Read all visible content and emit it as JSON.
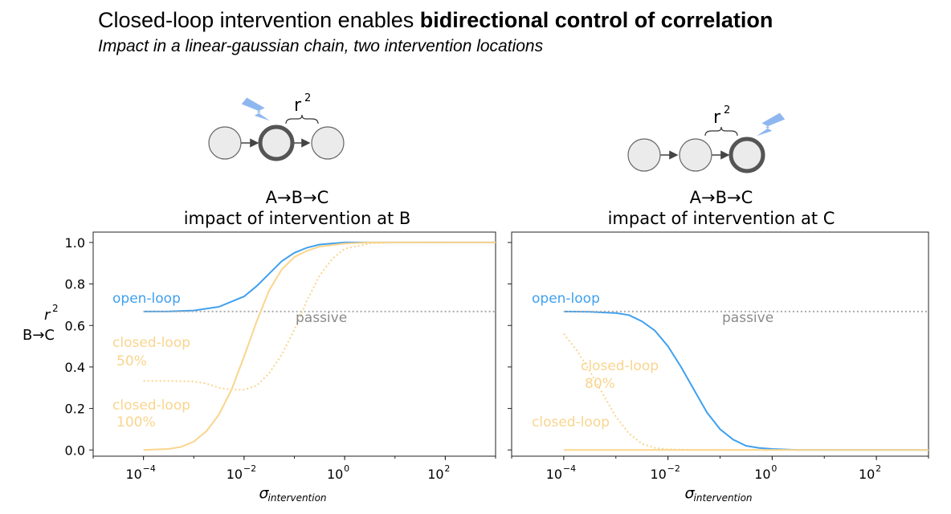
{
  "header": {
    "title_prefix": "Closed-loop intervention enables ",
    "title_bold": "bidirectional control of correlation",
    "subtitle": "Impact in a linear-gaussian chain, two intervention locations"
  },
  "colors": {
    "open_loop": "#3fa0ef",
    "closed_loop": "#f9d58d",
    "passive": "#aaaaaa",
    "node_fill": "#ebebeb",
    "node_stroke": "#555555",
    "lightning": "#8fb7ef"
  },
  "ylabel": {
    "r_label": "r",
    "r_exp": "2",
    "pair": "B→C"
  },
  "shared_y_ticks": [
    "0.0",
    "0.2",
    "0.4",
    "0.6",
    "0.8",
    "1.0"
  ],
  "shared_x_ticks": [
    {
      "base": "10",
      "exp": "−4"
    },
    {
      "base": "10",
      "exp": "−2"
    },
    {
      "base": "10",
      "exp": "0"
    },
    {
      "base": "10",
      "exp": "2"
    }
  ],
  "xlabel": {
    "sym": "σ",
    "sub": "intervention"
  },
  "panels": [
    {
      "diagram": {
        "r_label": "r",
        "r_exp": "2",
        "intervened_node": "B"
      },
      "title_line1": "A→B→C",
      "title_line2": "impact of intervention at B",
      "annotations": {
        "open": "open-loop",
        "passive": "passive",
        "closed_a_1": "closed-loop",
        "closed_a_2": "50%",
        "closed_b_1": "closed-loop",
        "closed_b_2": "100%"
      }
    },
    {
      "diagram": {
        "r_label": "r",
        "r_exp": "2",
        "intervened_node": "C"
      },
      "title_line1": "A→B→C",
      "title_line2": "impact of intervention at C",
      "annotations": {
        "open": "open-loop",
        "passive": "passive",
        "closed_a_1": "closed-loop",
        "closed_a_2": "80%",
        "closed_b_1": "closed-loop"
      }
    }
  ],
  "chart_data": [
    {
      "type": "line",
      "title": "A→B→C impact of intervention at B",
      "xscale": "log",
      "xlim": [
        1e-05,
        1000
      ],
      "ylim": [
        -0.03,
        1.05
      ],
      "xlabel": "σ intervention",
      "ylabel": "r² B→C",
      "grid": false,
      "series": [
        {
          "name": "open-loop",
          "style": "solid",
          "color": "#3fa0ef",
          "x": [
            0.0001,
            0.000316,
            0.001,
            0.00316,
            0.01,
            0.0178,
            0.0316,
            0.0562,
            0.1,
            0.178,
            0.316,
            1,
            3.16,
            10,
            100,
            1000
          ],
          "y": [
            0.667,
            0.668,
            0.672,
            0.69,
            0.74,
            0.79,
            0.85,
            0.91,
            0.95,
            0.975,
            0.99,
            1.0,
            1.0,
            1.0,
            1.0,
            1.0
          ]
        },
        {
          "name": "passive",
          "style": "dotted",
          "color": "#aaaaaa",
          "x": [
            0.0001,
            1000
          ],
          "y": [
            0.667,
            0.667
          ]
        },
        {
          "name": "closed-loop 50%",
          "style": "dotted",
          "color": "#f9d58d",
          "x": [
            0.0001,
            0.000316,
            0.001,
            0.00178,
            0.00316,
            0.00562,
            0.01,
            0.0178,
            0.0316,
            0.0562,
            0.1,
            0.178,
            0.316,
            0.562,
            1,
            3.16,
            10,
            100,
            1000
          ],
          "y": [
            0.333,
            0.333,
            0.33,
            0.32,
            0.3,
            0.29,
            0.29,
            0.31,
            0.37,
            0.46,
            0.58,
            0.72,
            0.84,
            0.92,
            0.97,
            0.995,
            1.0,
            1.0,
            1.0
          ]
        },
        {
          "name": "closed-loop 100%",
          "style": "solid",
          "color": "#f9d58d",
          "x": [
            0.0001,
            0.000316,
            0.000562,
            0.001,
            0.00178,
            0.00316,
            0.00562,
            0.01,
            0.0178,
            0.0316,
            0.0562,
            0.1,
            0.178,
            0.316,
            1,
            3.16,
            10,
            100,
            1000
          ],
          "y": [
            0.0,
            0.005,
            0.015,
            0.04,
            0.09,
            0.17,
            0.29,
            0.45,
            0.62,
            0.77,
            0.87,
            0.93,
            0.96,
            0.98,
            0.995,
            1.0,
            1.0,
            1.0,
            1.0
          ]
        }
      ]
    },
    {
      "type": "line",
      "title": "A→B→C impact of intervention at C",
      "xscale": "log",
      "xlim": [
        1e-05,
        1000
      ],
      "ylim": [
        -0.03,
        1.05
      ],
      "xlabel": "σ intervention",
      "ylabel": "",
      "grid": false,
      "series": [
        {
          "name": "open-loop",
          "style": "solid",
          "color": "#3fa0ef",
          "x": [
            0.0001,
            0.000316,
            0.001,
            0.00178,
            0.00316,
            0.00562,
            0.01,
            0.0178,
            0.0316,
            0.0562,
            0.1,
            0.178,
            0.316,
            0.562,
            1,
            3.16,
            10,
            100,
            1000
          ],
          "y": [
            0.667,
            0.666,
            0.66,
            0.65,
            0.62,
            0.575,
            0.5,
            0.4,
            0.29,
            0.18,
            0.1,
            0.05,
            0.02,
            0.01,
            0.005,
            0.0,
            0.0,
            0.0,
            0.0
          ]
        },
        {
          "name": "passive",
          "style": "dotted",
          "color": "#aaaaaa",
          "x": [
            0.0001,
            1000
          ],
          "y": [
            0.667,
            0.667
          ]
        },
        {
          "name": "closed-loop 80%",
          "style": "dotted",
          "color": "#f9d58d",
          "x": [
            0.0001,
            0.000178,
            0.000316,
            0.000562,
            0.001,
            0.00178,
            0.00316,
            0.00562,
            0.01,
            0.0316,
            0.1,
            1,
            1000
          ],
          "y": [
            0.56,
            0.48,
            0.38,
            0.27,
            0.16,
            0.08,
            0.03,
            0.01,
            0.003,
            0.0,
            0.0,
            0.0,
            0.0
          ]
        },
        {
          "name": "closed-loop",
          "style": "solid",
          "color": "#f9d58d",
          "x": [
            0.0001,
            1000
          ],
          "y": [
            0.0,
            0.0
          ]
        }
      ]
    }
  ]
}
